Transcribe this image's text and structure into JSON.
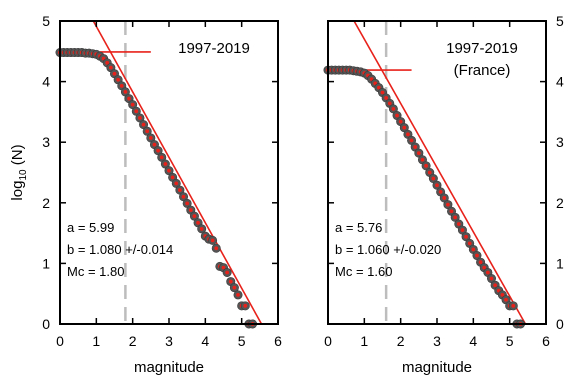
{
  "chart_data": [
    {
      "type": "scatter",
      "title": "1997-2019",
      "subtitle": "",
      "xlabel": "magnitude",
      "ylabel": "log10 (N)",
      "xlim": [
        0,
        6
      ],
      "ylim": [
        0,
        5
      ],
      "x_ticks": [
        "0",
        "1",
        "2",
        "3",
        "4",
        "5",
        "6"
      ],
      "y_ticks": [
        "0",
        "1",
        "2",
        "3",
        "4",
        "5"
      ],
      "y_tick_side": "left",
      "grid": false,
      "mc_line": 1.8,
      "fit_line": {
        "a": 5.99,
        "b": 1.08
      },
      "cross_point": [
        1.8,
        4.49
      ],
      "stats": [
        "a = 5.99",
        "b = 1.080 +/-0.014",
        "Mc = 1.80"
      ],
      "series": [
        {
          "x": [
            0.0,
            0.1,
            0.2,
            0.3,
            0.4,
            0.5,
            0.6,
            0.7,
            0.8,
            0.9,
            1.0,
            1.1,
            1.2,
            1.3,
            1.4,
            1.5,
            1.6,
            1.7,
            1.8,
            1.9,
            2.0,
            2.1,
            2.2,
            2.3,
            2.4,
            2.5,
            2.6,
            2.7,
            2.8,
            2.9,
            3.0,
            3.1,
            3.2,
            3.3,
            3.4,
            3.5,
            3.6,
            3.7,
            3.8,
            3.9,
            4.0,
            4.1,
            4.2,
            4.3,
            4.4,
            4.5,
            4.6,
            4.7,
            4.8,
            4.9,
            5.0,
            5.1,
            5.2,
            5.3
          ],
          "y": [
            4.48,
            4.48,
            4.48,
            4.48,
            4.48,
            4.48,
            4.48,
            4.47,
            4.47,
            4.46,
            4.45,
            4.42,
            4.38,
            4.31,
            4.23,
            4.13,
            4.03,
            3.93,
            3.83,
            3.72,
            3.62,
            3.51,
            3.4,
            3.29,
            3.18,
            3.07,
            2.96,
            2.86,
            2.75,
            2.64,
            2.53,
            2.42,
            2.32,
            2.21,
            2.1,
            1.99,
            1.88,
            1.78,
            1.67,
            1.57,
            1.45,
            1.4,
            1.38,
            1.25,
            0.95,
            0.93,
            0.85,
            0.7,
            0.6,
            0.48,
            0.3,
            0.3,
            0.0,
            0.0
          ]
        }
      ]
    },
    {
      "type": "scatter",
      "title": "1997-2019",
      "subtitle": "(France)",
      "xlabel": "magnitude",
      "ylabel": "",
      "xlim": [
        0,
        6
      ],
      "ylim": [
        0,
        5
      ],
      "x_ticks": [
        "0",
        "1",
        "2",
        "3",
        "4",
        "5",
        "6"
      ],
      "y_ticks": [
        "0",
        "1",
        "2",
        "3",
        "4",
        "5"
      ],
      "y_tick_side": "right",
      "grid": false,
      "mc_line": 1.6,
      "fit_line": {
        "a": 5.76,
        "b": 1.06
      },
      "cross_point": [
        1.6,
        4.19
      ],
      "stats": [
        "a = 5.76",
        "b = 1.060 +/-0.020",
        "Mc = 1.60"
      ],
      "series": [
        {
          "x": [
            0.0,
            0.1,
            0.2,
            0.3,
            0.4,
            0.5,
            0.6,
            0.7,
            0.8,
            0.9,
            1.0,
            1.1,
            1.2,
            1.3,
            1.4,
            1.5,
            1.6,
            1.7,
            1.8,
            1.9,
            2.0,
            2.1,
            2.2,
            2.3,
            2.4,
            2.5,
            2.6,
            2.7,
            2.8,
            2.9,
            3.0,
            3.1,
            3.2,
            3.3,
            3.4,
            3.5,
            3.6,
            3.7,
            3.8,
            3.9,
            4.0,
            4.1,
            4.2,
            4.3,
            4.4,
            4.5,
            4.6,
            4.7,
            4.8,
            4.9,
            5.0,
            5.1,
            5.2,
            5.3
          ],
          "y": [
            4.19,
            4.19,
            4.19,
            4.19,
            4.19,
            4.19,
            4.19,
            4.18,
            4.17,
            4.16,
            4.14,
            4.1,
            4.04,
            3.97,
            3.9,
            3.82,
            3.73,
            3.64,
            3.55,
            3.44,
            3.34,
            3.24,
            3.13,
            3.03,
            2.92,
            2.82,
            2.71,
            2.61,
            2.5,
            2.4,
            2.29,
            2.18,
            2.08,
            1.97,
            1.86,
            1.76,
            1.65,
            1.55,
            1.44,
            1.33,
            1.23,
            1.13,
            1.02,
            0.93,
            0.85,
            0.75,
            0.64,
            0.55,
            0.48,
            0.4,
            0.3,
            0.3,
            0.0,
            0.0
          ]
        }
      ]
    }
  ]
}
